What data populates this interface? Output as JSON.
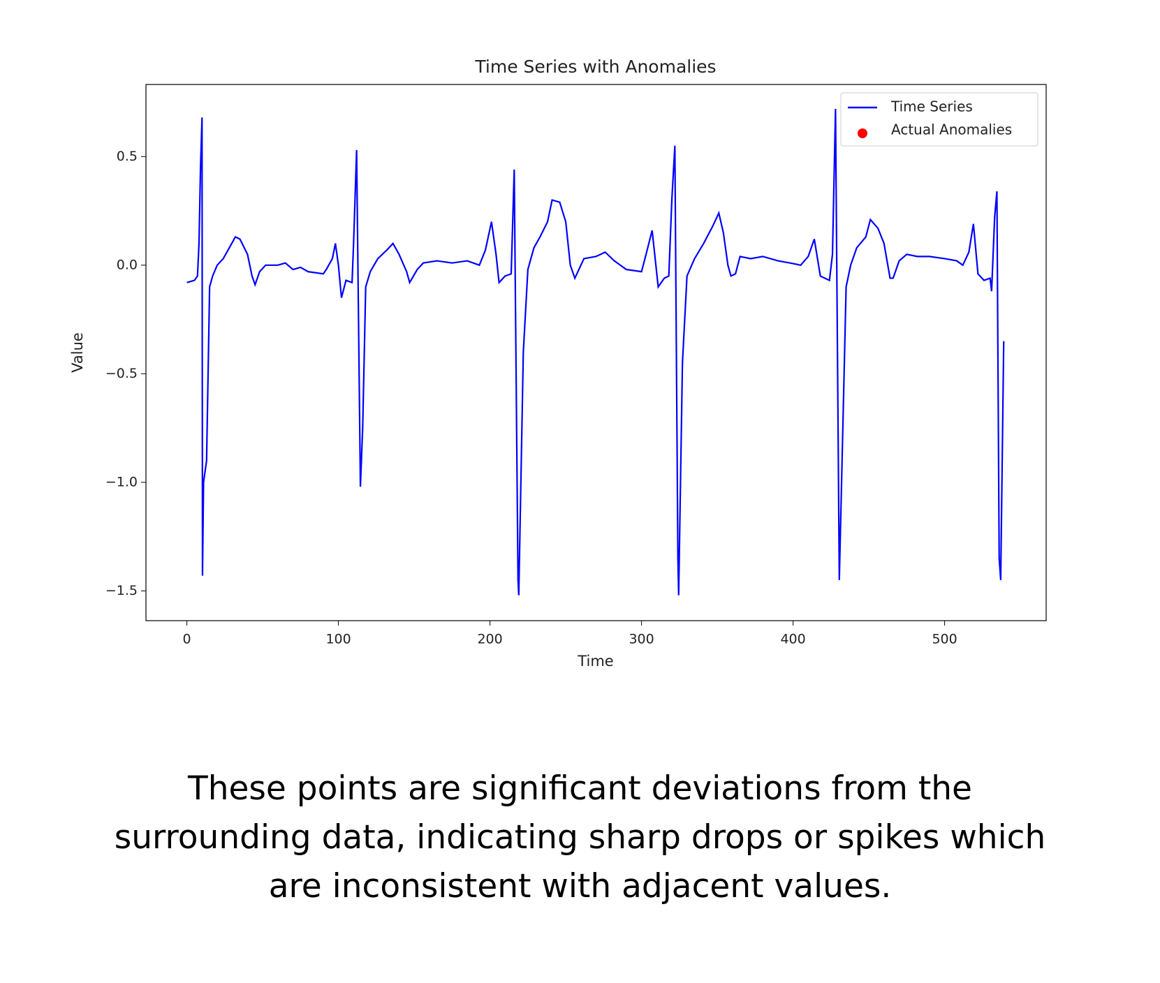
{
  "chart_data": {
    "type": "line",
    "title": "Time Series with Anomalies",
    "xlabel": "Time",
    "ylabel": "Value",
    "x": [
      0,
      5,
      7,
      8,
      9,
      10,
      10.3,
      11,
      13,
      15,
      17,
      20,
      24,
      28,
      32,
      35,
      40,
      43,
      45,
      48,
      52,
      60,
      65,
      70,
      75,
      80,
      90,
      92,
      96,
      98,
      100,
      102,
      105,
      109,
      110,
      112,
      114.5,
      116,
      118,
      121,
      126,
      132,
      136,
      140,
      145,
      147,
      152,
      156,
      165,
      175,
      185,
      193,
      197,
      201,
      204,
      206,
      210,
      214,
      216,
      218.5,
      219,
      222,
      225,
      229,
      233,
      238,
      241,
      246,
      250,
      253,
      256,
      262,
      270,
      276,
      282,
      290,
      300,
      303,
      307,
      311,
      315,
      318,
      320,
      322,
      324,
      324.5,
      327,
      330,
      335,
      341,
      347,
      351,
      354,
      357,
      359,
      362,
      365,
      372,
      380,
      390,
      398,
      405,
      410,
      414,
      418,
      424,
      426,
      428,
      430.5,
      432,
      435,
      438,
      442,
      448,
      451,
      456,
      460,
      464,
      466,
      470,
      475,
      482,
      490,
      500,
      508,
      512,
      516,
      519,
      522,
      526,
      530,
      531,
      533,
      534.5,
      536,
      537,
      539
    ],
    "series": [
      {
        "name": "Time Series",
        "color": "#0000ff",
        "values": [
          -0.08,
          -0.07,
          -0.05,
          0.1,
          0.45,
          0.68,
          -1.43,
          -1.0,
          -0.9,
          -0.1,
          -0.05,
          0,
          0.03,
          0.08,
          0.13,
          0.12,
          0.05,
          -0.05,
          -0.09,
          -0.03,
          0,
          0,
          0.01,
          -0.02,
          -0.01,
          -0.03,
          -0.04,
          -0.02,
          0.03,
          0.1,
          0,
          -0.15,
          -0.07,
          -0.08,
          0.1,
          0.53,
          -1.02,
          -0.75,
          -0.1,
          -0.03,
          0.03,
          0.07,
          0.1,
          0.05,
          -0.03,
          -0.08,
          -0.02,
          0.01,
          0.02,
          0.01,
          0.02,
          0,
          0.07,
          0.2,
          0.05,
          -0.08,
          -0.05,
          -0.04,
          0.44,
          -1.45,
          -1.52,
          -0.4,
          -0.02,
          0.08,
          0.13,
          0.2,
          0.3,
          0.29,
          0.2,
          0,
          -0.06,
          0.03,
          0.04,
          0.06,
          0.02,
          -0.02,
          -0.03,
          0.05,
          0.16,
          -0.1,
          -0.06,
          -0.05,
          0.3,
          0.55,
          -1.35,
          -1.52,
          -0.45,
          -0.05,
          0.03,
          0.1,
          0.18,
          0.24,
          0.15,
          0,
          -0.05,
          -0.04,
          0.04,
          0.03,
          0.04,
          0.02,
          0.01,
          0,
          0.04,
          0.12,
          -0.05,
          -0.07,
          0.05,
          0.72,
          -1.45,
          -1.0,
          -0.1,
          0,
          0.08,
          0.13,
          0.21,
          0.17,
          0.1,
          -0.06,
          -0.06,
          0.02,
          0.05,
          0.04,
          0.04,
          0.03,
          0.02,
          0,
          0.06,
          0.19,
          -0.04,
          -0.07,
          -0.06,
          -0.12,
          0.22,
          0.34,
          -1.35,
          -1.45,
          -0.35
        ]
      },
      {
        "name": "Actual Anomalies",
        "type": "scatter",
        "color": "#ff0000",
        "x": [],
        "values": []
      }
    ],
    "xlim": [
      -27,
      567
    ],
    "ylim": [
      -1.637,
      0.832
    ],
    "xticks": [
      0,
      100,
      200,
      300,
      400,
      500
    ],
    "yticks": [
      {
        "value": -1.5,
        "label": "−1.5"
      },
      {
        "value": -1.0,
        "label": "−1.0"
      },
      {
        "value": -0.5,
        "label": "−0.5"
      },
      {
        "value": 0,
        "label": "0.0"
      },
      0.5
    ],
    "legend": "upper right"
  },
  "caption_lines": [
    "These points are significant deviations from the",
    "surrounding data, indicating sharp drops or spikes which",
    "are inconsistent with adjacent values."
  ]
}
